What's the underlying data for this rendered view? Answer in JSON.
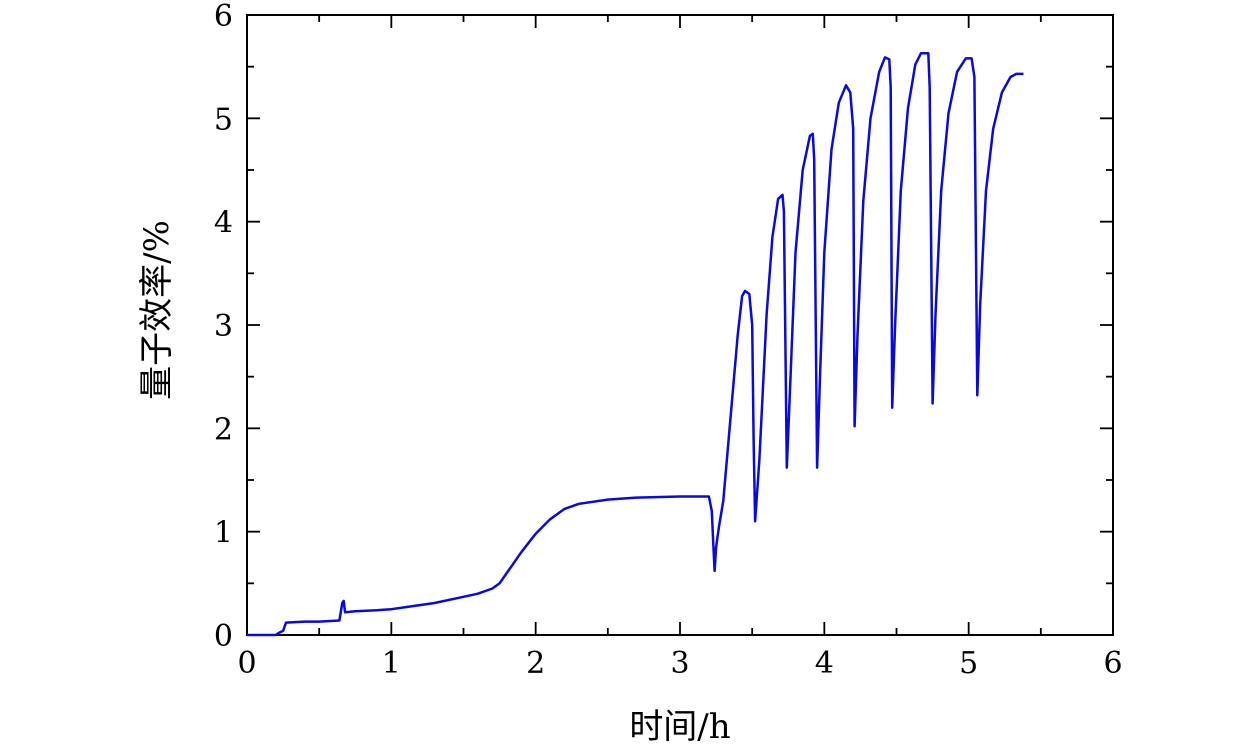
{
  "chart_data": {
    "type": "line",
    "title": "",
    "xlabel": "时间/h",
    "ylabel": "量子效率/%",
    "xlim": [
      0,
      6
    ],
    "ylim": [
      0,
      6
    ],
    "xticks": [
      "0",
      "1",
      "2",
      "3",
      "4",
      "5",
      "6"
    ],
    "yticks": [
      "0",
      "1",
      "2",
      "3",
      "4",
      "5",
      "6"
    ],
    "grid": false,
    "legend": "none",
    "series": [
      {
        "color": "#0a0adc",
        "points": [
          [
            0,
            0
          ],
          [
            0.2,
            0
          ],
          [
            0.22,
            0.02
          ],
          [
            0.25,
            0.04
          ],
          [
            0.27,
            0.12
          ],
          [
            0.4,
            0.13
          ],
          [
            0.5,
            0.13
          ],
          [
            0.64,
            0.14
          ],
          [
            0.66,
            0.31
          ],
          [
            0.67,
            0.33
          ],
          [
            0.68,
            0.22
          ],
          [
            0.75,
            0.23
          ],
          [
            0.9,
            0.24
          ],
          [
            1.0,
            0.25
          ],
          [
            1.1,
            0.27
          ],
          [
            1.3,
            0.31
          ],
          [
            1.5,
            0.37
          ],
          [
            1.6,
            0.4
          ],
          [
            1.7,
            0.45
          ],
          [
            1.75,
            0.5
          ],
          [
            1.8,
            0.6
          ],
          [
            1.9,
            0.8
          ],
          [
            2.0,
            0.98
          ],
          [
            2.1,
            1.12
          ],
          [
            2.2,
            1.22
          ],
          [
            2.3,
            1.27
          ],
          [
            2.5,
            1.31
          ],
          [
            2.7,
            1.33
          ],
          [
            3.0,
            1.34
          ],
          [
            3.2,
            1.34
          ],
          [
            3.22,
            1.2
          ],
          [
            3.23,
            0.9
          ],
          [
            3.24,
            0.62
          ],
          [
            3.25,
            0.85
          ],
          [
            3.27,
            1.05
          ],
          [
            3.3,
            1.3
          ],
          [
            3.35,
            2.1
          ],
          [
            3.4,
            2.9
          ],
          [
            3.43,
            3.28
          ],
          [
            3.45,
            3.33
          ],
          [
            3.48,
            3.3
          ],
          [
            3.5,
            3.0
          ],
          [
            3.51,
            1.9
          ],
          [
            3.52,
            1.1
          ],
          [
            3.55,
            1.7
          ],
          [
            3.6,
            3.1
          ],
          [
            3.64,
            3.85
          ],
          [
            3.68,
            4.22
          ],
          [
            3.71,
            4.26
          ],
          [
            3.72,
            4.1
          ],
          [
            3.74,
            1.62
          ],
          [
            3.76,
            2.3
          ],
          [
            3.8,
            3.7
          ],
          [
            3.85,
            4.5
          ],
          [
            3.9,
            4.83
          ],
          [
            3.92,
            4.85
          ],
          [
            3.93,
            4.6
          ],
          [
            3.95,
            1.62
          ],
          [
            3.97,
            2.5
          ],
          [
            4.0,
            3.7
          ],
          [
            4.05,
            4.7
          ],
          [
            4.1,
            5.15
          ],
          [
            4.15,
            5.32
          ],
          [
            4.18,
            5.25
          ],
          [
            4.2,
            4.9
          ],
          [
            4.21,
            2.02
          ],
          [
            4.23,
            2.9
          ],
          [
            4.27,
            4.2
          ],
          [
            4.32,
            5.0
          ],
          [
            4.38,
            5.45
          ],
          [
            4.42,
            5.59
          ],
          [
            4.45,
            5.57
          ],
          [
            4.46,
            5.3
          ],
          [
            4.47,
            2.2
          ],
          [
            4.49,
            3.0
          ],
          [
            4.53,
            4.3
          ],
          [
            4.58,
            5.1
          ],
          [
            4.63,
            5.52
          ],
          [
            4.67,
            5.63
          ],
          [
            4.72,
            5.63
          ],
          [
            4.73,
            5.3
          ],
          [
            4.75,
            2.24
          ],
          [
            4.77,
            3.1
          ],
          [
            4.81,
            4.3
          ],
          [
            4.86,
            5.05
          ],
          [
            4.92,
            5.45
          ],
          [
            4.98,
            5.58
          ],
          [
            5.02,
            5.58
          ],
          [
            5.04,
            5.4
          ],
          [
            5.06,
            2.32
          ],
          [
            5.08,
            3.2
          ],
          [
            5.12,
            4.3
          ],
          [
            5.17,
            4.9
          ],
          [
            5.23,
            5.25
          ],
          [
            5.29,
            5.4
          ],
          [
            5.33,
            5.43
          ],
          [
            5.38,
            5.43
          ]
        ]
      }
    ]
  }
}
